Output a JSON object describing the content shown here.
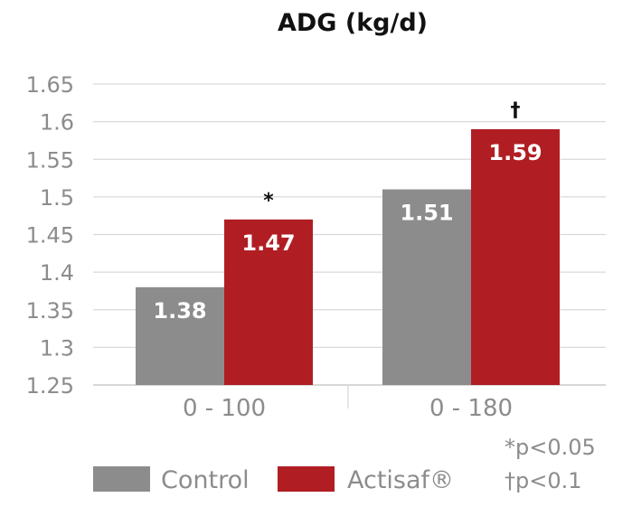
{
  "chart_data": {
    "type": "bar",
    "title": "ADG (kg/d)",
    "categories": [
      "0 - 100",
      "0 - 180"
    ],
    "series": [
      {
        "name": "Control",
        "color": "#8c8c8c",
        "values": [
          1.38,
          1.51
        ],
        "labels": [
          "1.38",
          "1.51"
        ]
      },
      {
        "name": "Actisaf®",
        "color": "#b01e23",
        "values": [
          1.47,
          1.59
        ],
        "labels": [
          "1.47",
          "1.59"
        ]
      }
    ],
    "ylim": [
      1.25,
      1.65
    ],
    "yticks": [
      "1.65",
      "1.6",
      "1.55",
      "1.5",
      "1.45",
      "1.4",
      "1.35",
      "1.3",
      "1.25"
    ],
    "significance_marks": [
      "*",
      "†"
    ],
    "footnotes": [
      "*p<0.05",
      "†p<0.1"
    ],
    "legend_position": "bottom",
    "grid": true
  }
}
